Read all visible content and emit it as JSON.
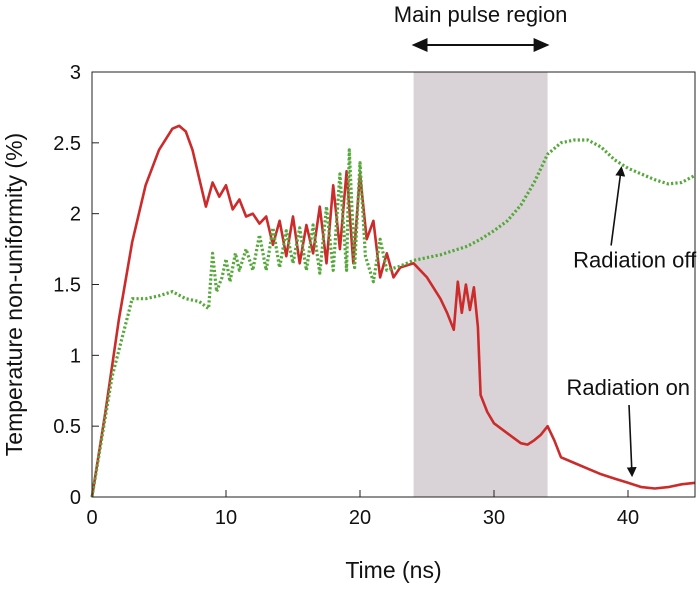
{
  "chart_data": {
    "type": "line",
    "xlabel": "Time (ns)",
    "ylabel": "Temperature non-uniformity (%)",
    "xlim": [
      0,
      45
    ],
    "ylim": [
      0,
      3
    ],
    "x_ticks": [
      0,
      10,
      20,
      30,
      40
    ],
    "y_ticks": [
      0,
      0.5,
      1,
      1.5,
      2,
      2.5,
      3
    ],
    "y_tick_labels": [
      "0",
      "0.5",
      "1",
      "1.5",
      "2",
      "2.5",
      "3"
    ],
    "grid": false,
    "shaded_region": {
      "x_start": 24,
      "x_end": 34,
      "color": "#d9d3d8"
    },
    "series": [
      {
        "key": "radiation_on",
        "color": "#cc2b2b",
        "style": "solid",
        "points": [
          [
            0,
            0
          ],
          [
            1,
            0.6
          ],
          [
            2,
            1.25
          ],
          [
            3,
            1.8
          ],
          [
            4,
            2.2
          ],
          [
            5,
            2.45
          ],
          [
            6,
            2.6
          ],
          [
            6.5,
            2.62
          ],
          [
            7,
            2.58
          ],
          [
            7.5,
            2.45
          ],
          [
            8,
            2.25
          ],
          [
            8.5,
            2.05
          ],
          [
            9,
            2.22
          ],
          [
            9.5,
            2.12
          ],
          [
            10,
            2.2
          ],
          [
            10.5,
            2.03
          ],
          [
            11,
            2.1
          ],
          [
            11.5,
            1.98
          ],
          [
            12,
            2.0
          ],
          [
            12.5,
            1.93
          ],
          [
            13,
            1.98
          ],
          [
            13.5,
            1.78
          ],
          [
            14,
            1.95
          ],
          [
            14.5,
            1.7
          ],
          [
            15,
            1.98
          ],
          [
            15.5,
            1.65
          ],
          [
            16,
            1.92
          ],
          [
            16.5,
            1.72
          ],
          [
            17,
            2.05
          ],
          [
            17.5,
            1.65
          ],
          [
            18,
            2.2
          ],
          [
            18.5,
            1.75
          ],
          [
            19,
            2.3
          ],
          [
            19.5,
            1.65
          ],
          [
            20,
            2.28
          ],
          [
            20.5,
            1.82
          ],
          [
            21,
            1.95
          ],
          [
            21.5,
            1.55
          ],
          [
            22,
            1.72
          ],
          [
            22.5,
            1.55
          ],
          [
            23,
            1.62
          ],
          [
            24,
            1.65
          ],
          [
            25,
            1.55
          ],
          [
            26,
            1.4
          ],
          [
            26.5,
            1.3
          ],
          [
            27,
            1.18
          ],
          [
            27.3,
            1.52
          ],
          [
            27.6,
            1.3
          ],
          [
            27.9,
            1.5
          ],
          [
            28.2,
            1.32
          ],
          [
            28.5,
            1.48
          ],
          [
            28.8,
            1.2
          ],
          [
            29,
            0.72
          ],
          [
            29.5,
            0.6
          ],
          [
            30,
            0.52
          ],
          [
            31,
            0.45
          ],
          [
            32,
            0.38
          ],
          [
            32.5,
            0.37
          ],
          [
            33,
            0.4
          ],
          [
            33.5,
            0.44
          ],
          [
            34,
            0.5
          ],
          [
            34.5,
            0.4
          ],
          [
            35,
            0.28
          ],
          [
            36,
            0.24
          ],
          [
            37,
            0.2
          ],
          [
            38,
            0.16
          ],
          [
            39,
            0.13
          ],
          [
            40,
            0.1
          ],
          [
            41,
            0.07
          ],
          [
            42,
            0.06
          ],
          [
            43,
            0.07
          ],
          [
            44,
            0.09
          ],
          [
            45,
            0.1
          ]
        ]
      },
      {
        "key": "radiation_off",
        "color": "#55a83a",
        "style": "dotted",
        "points": [
          [
            0,
            0
          ],
          [
            1.5,
            0.85
          ],
          [
            3,
            1.4
          ],
          [
            4,
            1.4
          ],
          [
            5,
            1.42
          ],
          [
            6,
            1.45
          ],
          [
            7,
            1.4
          ],
          [
            8,
            1.38
          ],
          [
            8.7,
            1.33
          ],
          [
            9,
            1.72
          ],
          [
            9.3,
            1.45
          ],
          [
            9.7,
            1.55
          ],
          [
            10,
            1.68
          ],
          [
            10.3,
            1.52
          ],
          [
            10.7,
            1.72
          ],
          [
            11,
            1.6
          ],
          [
            11.5,
            1.75
          ],
          [
            12,
            1.6
          ],
          [
            12.5,
            1.85
          ],
          [
            13,
            1.6
          ],
          [
            13.5,
            1.9
          ],
          [
            14,
            1.62
          ],
          [
            14.5,
            1.88
          ],
          [
            15,
            1.65
          ],
          [
            15.5,
            1.9
          ],
          [
            16,
            1.6
          ],
          [
            16.5,
            1.92
          ],
          [
            17,
            1.58
          ],
          [
            17.5,
            2.05
          ],
          [
            18,
            1.6
          ],
          [
            18.5,
            2.28
          ],
          [
            19,
            1.6
          ],
          [
            19.2,
            2.45
          ],
          [
            19.6,
            1.62
          ],
          [
            20,
            2.36
          ],
          [
            20.4,
            1.7
          ],
          [
            21,
            1.52
          ],
          [
            21.5,
            1.82
          ],
          [
            22,
            1.6
          ],
          [
            23,
            1.63
          ],
          [
            24,
            1.67
          ],
          [
            25,
            1.69
          ],
          [
            26,
            1.71
          ],
          [
            27,
            1.74
          ],
          [
            28,
            1.77
          ],
          [
            29,
            1.82
          ],
          [
            30,
            1.88
          ],
          [
            31,
            1.95
          ],
          [
            32,
            2.06
          ],
          [
            33,
            2.22
          ],
          [
            34,
            2.42
          ],
          [
            35,
            2.5
          ],
          [
            36,
            2.52
          ],
          [
            37,
            2.52
          ],
          [
            38,
            2.47
          ],
          [
            39,
            2.38
          ],
          [
            40,
            2.32
          ],
          [
            41,
            2.28
          ],
          [
            42,
            2.24
          ],
          [
            43,
            2.21
          ],
          [
            44,
            2.22
          ],
          [
            45,
            2.27
          ]
        ]
      }
    ],
    "annotations": {
      "main_pulse": {
        "text": "Main pulse region",
        "arrow_from_x": 24,
        "arrow_to_x": 34
      },
      "radiation_off": {
        "text": "Radiation off",
        "text_x": 36.5,
        "text_y": 1.62,
        "arrow_tip_x": 39.5,
        "arrow_tip_y": 2.35
      },
      "radiation_on": {
        "text": "Radiation on",
        "text_x": 37.5,
        "text_y": 0.72,
        "arrow_tip_x": 40.3,
        "arrow_tip_y": 0.14
      }
    }
  }
}
